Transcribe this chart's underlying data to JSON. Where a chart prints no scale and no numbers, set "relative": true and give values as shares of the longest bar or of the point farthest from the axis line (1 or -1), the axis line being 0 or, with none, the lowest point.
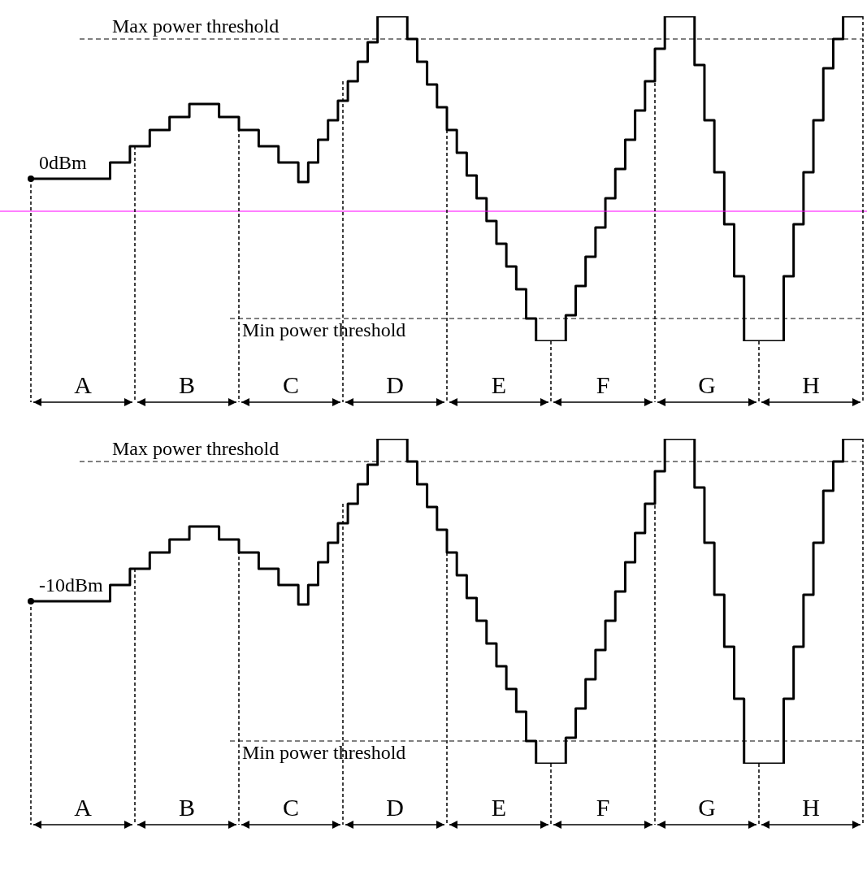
{
  "chart_data": [
    {
      "type": "step",
      "relative": true,
      "categories": [
        null,
        null,
        null,
        null,
        null,
        null,
        null,
        null,
        null,
        null,
        null,
        null,
        null,
        null,
        null,
        null,
        null,
        null,
        null,
        null,
        null,
        null,
        null,
        null,
        null,
        null,
        null,
        null,
        null,
        null,
        null,
        null,
        null,
        null,
        null,
        null,
        null,
        null,
        null,
        null,
        null,
        null,
        null,
        null,
        null,
        null,
        null,
        null,
        null,
        null,
        null,
        null,
        null,
        null,
        null,
        null,
        null,
        null,
        null,
        null,
        null,
        null,
        null,
        null,
        null,
        null,
        null,
        null,
        null,
        null,
        null,
        null,
        null,
        null,
        null,
        null,
        null,
        null,
        null,
        null,
        null,
        null,
        null,
        null,
        null
      ],
      "series": [
        {
          "color": "#000000",
          "values": [
            0.5,
            0.5,
            0.5,
            0.5,
            0.5,
            0.5,
            0.5,
            0.5,
            0.55,
            0.55,
            0.6,
            0.6,
            0.65,
            0.65,
            0.69,
            0.69,
            0.73,
            0.73,
            0.73,
            0.69,
            0.69,
            0.65,
            0.65,
            0.6,
            0.6,
            0.55,
            0.55,
            0.49,
            0.55,
            0.62,
            0.68,
            0.74,
            0.8,
            0.86,
            0.92,
            1,
            1,
            1,
            0.93,
            0.86,
            0.79,
            0.72,
            0.65,
            0.58,
            0.51,
            0.44,
            0.37,
            0.3,
            0.23,
            0.16,
            0.07,
            0,
            0,
            0,
            0.08,
            0.17,
            0.26,
            0.35,
            0.44,
            0.53,
            0.62,
            0.71,
            0.8,
            0.9,
            1,
            1,
            1,
            0.85,
            0.68,
            0.52,
            0.36,
            0.2,
            0,
            0,
            0,
            0,
            0.2,
            0.36,
            0.52,
            0.68,
            0.84,
            0.93,
            1,
            1,
            1
          ]
        }
      ],
      "ref_lines": [
        {
          "axis": "y",
          "value": 0.93,
          "label": "Max power threshold",
          "line_style": "dashed",
          "color": "#000000"
        },
        {
          "axis": "y",
          "value": 0.07,
          "label": "Min power threshold",
          "line_style": "dashed",
          "color": "#000000"
        },
        {
          "axis": "y",
          "value": 0.4,
          "color": "#ff00ff",
          "line_style": "solid"
        }
      ],
      "annotations": [
        {
          "text": "0dBm",
          "y": 0.5
        },
        "A",
        "B",
        "C",
        "D",
        "E",
        "F",
        "G",
        "H"
      ],
      "grid": "x"
    },
    {
      "type": "step",
      "relative": true,
      "categories": [
        null,
        null,
        null,
        null,
        null,
        null,
        null,
        null,
        null,
        null,
        null,
        null,
        null,
        null,
        null,
        null,
        null,
        null,
        null,
        null,
        null,
        null,
        null,
        null,
        null,
        null,
        null,
        null,
        null,
        null,
        null,
        null,
        null,
        null,
        null,
        null,
        null,
        null,
        null,
        null,
        null,
        null,
        null,
        null,
        null,
        null,
        null,
        null,
        null,
        null,
        null,
        null,
        null,
        null,
        null,
        null,
        null,
        null,
        null,
        null,
        null,
        null,
        null,
        null,
        null,
        null,
        null,
        null,
        null,
        null,
        null,
        null,
        null,
        null,
        null,
        null,
        null,
        null,
        null,
        null,
        null,
        null,
        null,
        null,
        null
      ],
      "series": [
        {
          "color": "#000000",
          "values": [
            0.5,
            0.5,
            0.5,
            0.5,
            0.5,
            0.5,
            0.5,
            0.5,
            0.55,
            0.55,
            0.6,
            0.6,
            0.65,
            0.65,
            0.69,
            0.69,
            0.73,
            0.73,
            0.73,
            0.69,
            0.69,
            0.65,
            0.65,
            0.6,
            0.6,
            0.55,
            0.55,
            0.49,
            0.55,
            0.62,
            0.68,
            0.74,
            0.8,
            0.86,
            0.92,
            1,
            1,
            1,
            0.93,
            0.86,
            0.79,
            0.72,
            0.65,
            0.58,
            0.51,
            0.44,
            0.37,
            0.3,
            0.23,
            0.16,
            0.07,
            0,
            0,
            0,
            0.08,
            0.17,
            0.26,
            0.35,
            0.44,
            0.53,
            0.62,
            0.71,
            0.8,
            0.9,
            1,
            1,
            1,
            0.85,
            0.68,
            0.52,
            0.36,
            0.2,
            0,
            0,
            0,
            0,
            0.2,
            0.36,
            0.52,
            0.68,
            0.84,
            0.93,
            1,
            1,
            1
          ]
        }
      ],
      "ref_lines": [
        {
          "axis": "y",
          "value": 0.93,
          "label": "Max power threshold",
          "line_style": "dashed",
          "color": "#000000"
        },
        {
          "axis": "y",
          "value": 0.07,
          "label": "Min power threshold",
          "line_style": "dashed",
          "color": "#000000"
        }
      ],
      "annotations": [
        {
          "text": "-10dBm",
          "y": 0.5
        },
        "A",
        "B",
        "C",
        "D",
        "E",
        "F",
        "G",
        "H"
      ],
      "grid": "x"
    }
  ]
}
